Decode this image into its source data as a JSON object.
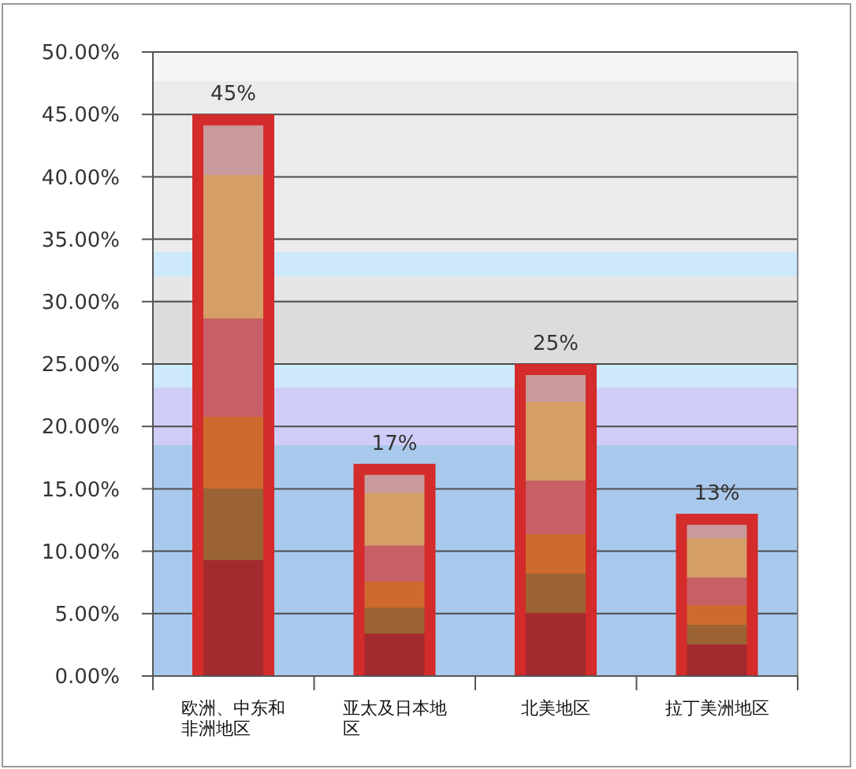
{
  "chart_data": {
    "type": "bar",
    "categories": [
      "欧洲、中东和非洲地区",
      "亚太及日本地区",
      "北美地区",
      "拉丁美洲地区"
    ],
    "values": [
      45,
      17,
      25,
      13
    ],
    "color": "#d42b2b",
    "value_labels": [
      "45%",
      "17%",
      "25%",
      "13%"
    ],
    "ylim": [
      0,
      50
    ],
    "yticks": [
      {
        "value": 0,
        "label": "0.00%"
      },
      {
        "value": 5,
        "label": "5.00%"
      },
      {
        "value": 10,
        "label": "10.00%"
      },
      {
        "value": 15,
        "label": "15.00%"
      },
      {
        "value": 20,
        "label": "20.00%"
      },
      {
        "value": 25,
        "label": "25.00%"
      },
      {
        "value": 30,
        "label": "30.00%"
      },
      {
        "value": 35,
        "label": "35.00%"
      },
      {
        "value": 40,
        "label": "40.00%"
      },
      {
        "value": 45,
        "label": "45.00%"
      },
      {
        "value": 50,
        "label": "50.00%"
      }
    ],
    "grid": "y",
    "bands": [
      {
        "axis": "y",
        "from": 0,
        "to": 18.5,
        "color": "#a9c9ec"
      },
      {
        "axis": "y",
        "from": 18.5,
        "to": 23.1,
        "color": "#d0ccf8"
      },
      {
        "axis": "y",
        "from": 23.1,
        "to": 25,
        "color": "#cde9fb"
      },
      {
        "axis": "y",
        "from": 25,
        "to": 30.2,
        "color": "#dcdcdc"
      },
      {
        "axis": "y",
        "from": 30.2,
        "to": 32,
        "color": "#e6e6e6"
      },
      {
        "axis": "y",
        "from": 32,
        "to": 34,
        "color": "#cde9fb"
      },
      {
        "axis": "y",
        "from": 34,
        "to": 47.7,
        "color": "#ebebeb"
      },
      {
        "axis": "y",
        "from": 47.7,
        "to": 50,
        "color": "#f5f5f5"
      }
    ]
  }
}
